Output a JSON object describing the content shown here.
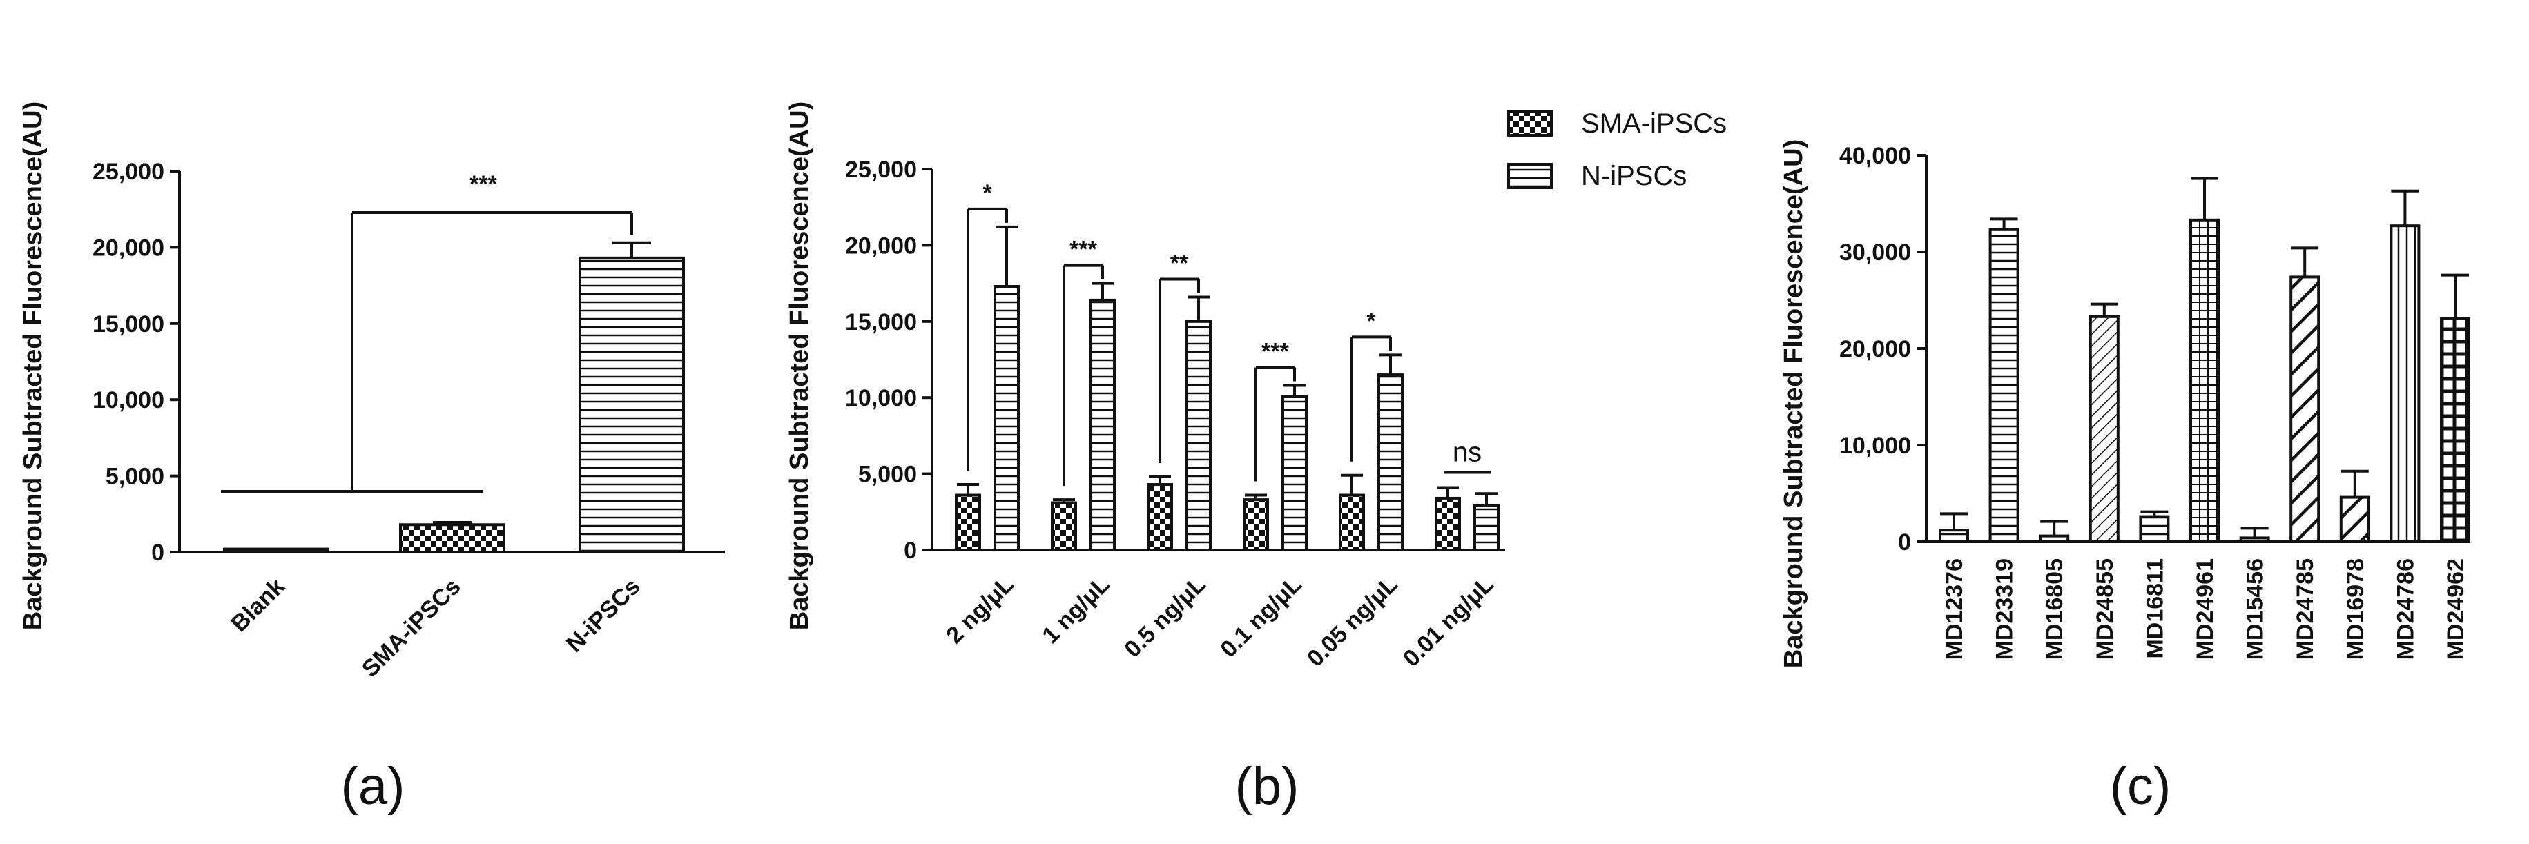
{
  "chart_data": [
    {
      "type": "bar",
      "panel_label": "(a)",
      "ylabel": "Background Subtracted Fluorescence(AU)",
      "ylim": [
        0,
        25000
      ],
      "yticks": [
        0,
        5000,
        10000,
        15000,
        20000,
        25000
      ],
      "ytick_labels": [
        "0",
        "5,000",
        "10,000",
        "15,000",
        "20,000",
        "25,000"
      ],
      "categories": [
        "Blank",
        "SMA-iPSCs",
        "N-iPSCs"
      ],
      "values": [
        200,
        1800,
        19300
      ],
      "errors": [
        0,
        150,
        1000
      ],
      "patterns": [
        "solid",
        "checker",
        "hlines"
      ],
      "annotations": [
        {
          "text": "***",
          "between": [
            "Blank–SMA-iPSCs",
            "N-iPSCs"
          ]
        }
      ]
    },
    {
      "type": "bar",
      "panel_label": "(b)",
      "ylabel": "Background Subtracted Fluorescence(AU)",
      "ylim": [
        0,
        25000
      ],
      "yticks": [
        0,
        5000,
        10000,
        15000,
        20000,
        25000
      ],
      "ytick_labels": [
        "0",
        "5,000",
        "10,000",
        "15,000",
        "20,000",
        "25,000"
      ],
      "categories": [
        "2 ng/μL",
        "1 ng/μL",
        "0.5  ng/μL",
        "0.1 ng/μL",
        "0.05 ng/μL",
        "0.01 ng/μL"
      ],
      "series": [
        {
          "name": "SMA-iPSCs",
          "pattern": "checker",
          "values": [
            3600,
            3100,
            4300,
            3300,
            3600,
            3400
          ],
          "errors": [
            700,
            200,
            500,
            300,
            1300,
            700
          ]
        },
        {
          "name": "N-iPSCs",
          "pattern": "hlines",
          "values": [
            17300,
            16400,
            15000,
            10100,
            11500,
            2900
          ],
          "errors": [
            3900,
            1100,
            1600,
            700,
            1300,
            800
          ]
        }
      ],
      "significance": [
        "*",
        "***",
        "**",
        "***",
        "*",
        "ns"
      ],
      "legend_position": "top-right"
    },
    {
      "type": "bar",
      "panel_label": "(c)",
      "ylabel": "Background Subtracted Fluorescence(AU)",
      "ylim": [
        0,
        40000
      ],
      "yticks": [
        0,
        10000,
        20000,
        30000,
        40000
      ],
      "ytick_labels": [
        "0",
        "10,000",
        "20,000",
        "30,000",
        "40,000"
      ],
      "categories": [
        "MD12376",
        "MD23319",
        "MD16805",
        "MD24855",
        "MD16811",
        "MD24961",
        "MD15456",
        "MD24785",
        "MD16978",
        "MD24786",
        "MD24962"
      ],
      "values": [
        1200,
        32300,
        600,
        23300,
        2600,
        33300,
        400,
        27400,
        4600,
        32700,
        23100
      ],
      "errors": [
        1700,
        1100,
        1500,
        1300,
        500,
        4300,
        1000,
        3000,
        2700,
        3600,
        4500
      ],
      "patterns": [
        "hlines",
        "hlines",
        "hlines",
        "diag-thin",
        "hlines",
        "grid",
        "hlines",
        "diag-thick",
        "diag-thick",
        "vlines",
        "grid-thick"
      ]
    }
  ]
}
